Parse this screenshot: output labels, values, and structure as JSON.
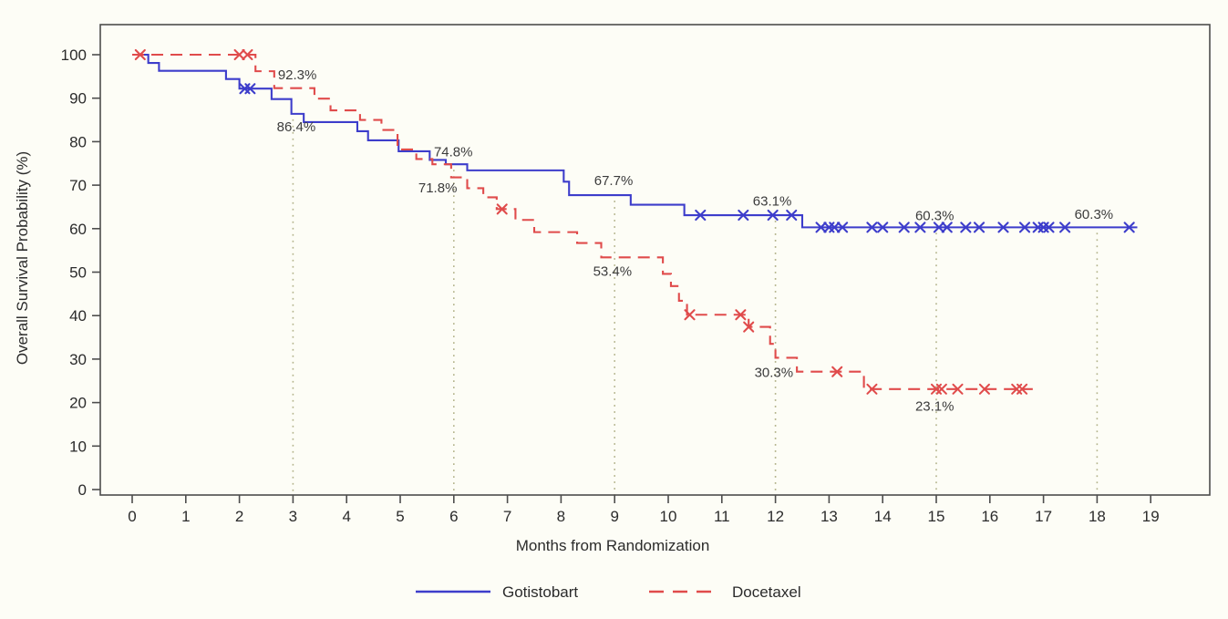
{
  "figure": {
    "y_axis_title": "Overall Survival Probability (%)",
    "x_axis_title": "Months from Randomization",
    "legend": [
      {
        "label": "Gotistobart",
        "style": "solid",
        "color": "#3d3dcb"
      },
      {
        "label": "Docetaxel",
        "style": "dashed",
        "color": "#e04b4b"
      }
    ]
  },
  "colors": {
    "gotistobart": "#3d3dcb",
    "docetaxel": "#e04b4b",
    "gridline": "#b4b48c",
    "axis": "#4d4d4d",
    "tick_text": "#2b2b2b",
    "annotation_text": "#3c3c3c",
    "background": "#fdfdf6"
  },
  "chart_data": {
    "type": "line",
    "subtype": "kaplan-meier-step",
    "title": "",
    "xlabel": "Months from Randomization",
    "ylabel": "Overall Survival Probability (%)",
    "x_axis": {
      "min": 0,
      "max": 19,
      "ticks": [
        0,
        1,
        2,
        3,
        4,
        5,
        6,
        7,
        8,
        9,
        10,
        11,
        12,
        13,
        14,
        15,
        16,
        17,
        18,
        19
      ]
    },
    "y_axis": {
      "min": 0,
      "max": 100,
      "ticks": [
        0,
        10,
        20,
        30,
        40,
        50,
        60,
        70,
        80,
        90,
        100
      ]
    },
    "grid": "vertical-dotted-droplines-at-landmarks",
    "landmark_months": [
      3,
      6,
      9,
      12,
      15,
      18
    ],
    "legend_position": "bottom-center",
    "series": [
      {
        "name": "Gotistobart",
        "color": "#3d3dcb",
        "line_style": "solid",
        "end_month": 18.75,
        "steps": [
          [
            0,
            100
          ],
          [
            0.3,
            98.1
          ],
          [
            0.5,
            96.3
          ],
          [
            1.75,
            94.4
          ],
          [
            2.0,
            92.2
          ],
          [
            2.6,
            89.8
          ],
          [
            2.97,
            86.4
          ],
          [
            3.2,
            84.5
          ],
          [
            4.2,
            82.4
          ],
          [
            4.4,
            80.3
          ],
          [
            4.97,
            77.8
          ],
          [
            5.55,
            75.8
          ],
          [
            5.85,
            74.8
          ],
          [
            6.25,
            73.4
          ],
          [
            8.05,
            70.8
          ],
          [
            8.15,
            67.7
          ],
          [
            9.3,
            65.5
          ],
          [
            10.3,
            63.1
          ],
          [
            12.5,
            60.3
          ]
        ],
        "censor_marks": [
          [
            2.1,
            92.2
          ],
          [
            2.2,
            92.2
          ],
          [
            10.6,
            63.1
          ],
          [
            11.4,
            63.1
          ],
          [
            11.95,
            63.1
          ],
          [
            12.3,
            63.1
          ],
          [
            12.85,
            60.3
          ],
          [
            13.0,
            60.3
          ],
          [
            13.1,
            60.3
          ],
          [
            13.25,
            60.3
          ],
          [
            13.8,
            60.3
          ],
          [
            14.0,
            60.3
          ],
          [
            14.4,
            60.3
          ],
          [
            14.7,
            60.3
          ],
          [
            15.05,
            60.3
          ],
          [
            15.2,
            60.3
          ],
          [
            15.55,
            60.3
          ],
          [
            15.8,
            60.3
          ],
          [
            16.25,
            60.3
          ],
          [
            16.65,
            60.3
          ],
          [
            16.9,
            60.3
          ],
          [
            17.0,
            60.3
          ],
          [
            17.1,
            60.3
          ],
          [
            17.4,
            60.3
          ],
          [
            18.6,
            60.3
          ]
        ],
        "landmark_values": {
          "3": "86.4%",
          "6": "74.8%",
          "9": "67.7%",
          "12": "63.1%",
          "15": "60.3%",
          "18": "60.3%"
        }
      },
      {
        "name": "Docetaxel",
        "color": "#e04b4b",
        "line_style": "dashed",
        "end_month": 16.8,
        "steps": [
          [
            0,
            100
          ],
          [
            2.3,
            96.2
          ],
          [
            2.65,
            92.3
          ],
          [
            3.4,
            89.9
          ],
          [
            3.7,
            87.2
          ],
          [
            4.25,
            85.0
          ],
          [
            4.65,
            82.7
          ],
          [
            4.95,
            78.2
          ],
          [
            5.3,
            76.0
          ],
          [
            5.6,
            74.8
          ],
          [
            5.95,
            71.8
          ],
          [
            6.25,
            69.3
          ],
          [
            6.55,
            67.2
          ],
          [
            6.8,
            64.5
          ],
          [
            7.15,
            62.0
          ],
          [
            7.5,
            59.2
          ],
          [
            8.3,
            56.7
          ],
          [
            8.75,
            53.4
          ],
          [
            9.9,
            49.6
          ],
          [
            10.05,
            46.8
          ],
          [
            10.2,
            43.4
          ],
          [
            10.35,
            40.2
          ],
          [
            11.5,
            37.4
          ],
          [
            11.9,
            33.5
          ],
          [
            12.0,
            30.3
          ],
          [
            12.4,
            27.1
          ],
          [
            13.65,
            23.1
          ]
        ],
        "censor_marks": [
          [
            0.15,
            100
          ],
          [
            2.0,
            100
          ],
          [
            2.15,
            100
          ],
          [
            6.9,
            64.5
          ],
          [
            10.4,
            40.2
          ],
          [
            11.35,
            40.2
          ],
          [
            11.5,
            37.4
          ],
          [
            13.15,
            27.1
          ],
          [
            13.8,
            23.1
          ],
          [
            15.0,
            23.1
          ],
          [
            15.1,
            23.1
          ],
          [
            15.4,
            23.1
          ],
          [
            15.9,
            23.1
          ],
          [
            16.5,
            23.1
          ],
          [
            16.6,
            23.1
          ]
        ],
        "landmark_values": {
          "3": "92.3%",
          "6": "71.8%",
          "9": "53.4%",
          "12": "30.3%",
          "15": "23.1%"
        }
      }
    ],
    "annotations": [
      {
        "text": "92.3%",
        "series": "Docetaxel",
        "x_month": 3.08,
        "y_pct": 95.4
      },
      {
        "text": "86.4%",
        "series": "Gotistobart",
        "x_month": 3.06,
        "y_pct": 83.4
      },
      {
        "text": "74.8%",
        "series": "Gotistobart",
        "x_month": 5.99,
        "y_pct": 77.7
      },
      {
        "text": "71.8%",
        "series": "Docetaxel",
        "x_month": 5.7,
        "y_pct": 69.4
      },
      {
        "text": "67.7%",
        "series": "Gotistobart",
        "x_month": 8.98,
        "y_pct": 71.1
      },
      {
        "text": "53.4%",
        "series": "Docetaxel",
        "x_month": 8.96,
        "y_pct": 50.2
      },
      {
        "text": "63.1%",
        "series": "Gotistobart",
        "x_month": 11.94,
        "y_pct": 66.4
      },
      {
        "text": "30.3%",
        "series": "Docetaxel",
        "x_month": 11.97,
        "y_pct": 26.9
      },
      {
        "text": "60.3%",
        "series": "Gotistobart",
        "x_month": 14.97,
        "y_pct": 63.0
      },
      {
        "text": "23.1%",
        "series": "Docetaxel",
        "x_month": 14.97,
        "y_pct": 19.2
      },
      {
        "text": "60.3%",
        "series": "Gotistobart",
        "x_month": 17.94,
        "y_pct": 63.3
      }
    ]
  }
}
